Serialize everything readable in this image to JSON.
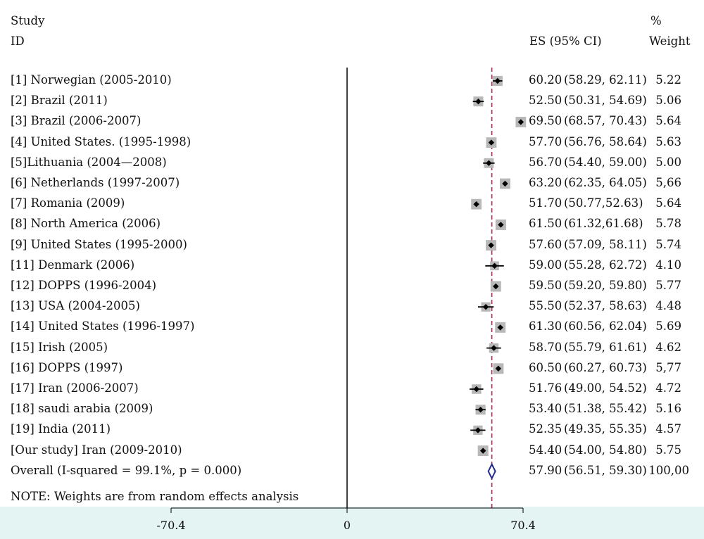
{
  "headers": {
    "study": "Study",
    "id": "ID",
    "es": "ES (95% CI)",
    "percent": "%",
    "weight": "Weight"
  },
  "note": "NOTE: Weights are from random effects analysis",
  "colors": {
    "effect_line": "#a0304a",
    "overall_diamond": "#1f2a8c",
    "axis_band": "#e3f4f2",
    "weight_box": "#b8b8b8"
  },
  "chart_data": {
    "type": "forest",
    "x_ticks": [
      "-70.4",
      "0",
      "70.4"
    ],
    "x_tick_values": [
      -70.4,
      0,
      70.4
    ],
    "xlim": [
      -70.4,
      70.4
    ],
    "overall_line": 57.9,
    "studies": [
      {
        "id": "[1] Norwegian (2005-2010)",
        "es": 60.2,
        "lo": 58.29,
        "hi": 62.11,
        "es_text": "60.20",
        "ci_text": "(58.29,   62.11)",
        "weight": 5.22,
        "weight_text": "5.22"
      },
      {
        "id": "[2] Brazil (2011)",
        "es": 52.5,
        "lo": 50.31,
        "hi": 54.69,
        "es_text": "52.50",
        "ci_text": "(50.31,   54.69)",
        "weight": 5.06,
        "weight_text": "5.06"
      },
      {
        "id": "[3] Brazil (2006-2007)",
        "es": 69.5,
        "lo": 68.57,
        "hi": 70.43,
        "es_text": "69.50",
        "ci_text": "(68.57,   70.43)",
        "weight": 5.64,
        "weight_text": "5.64"
      },
      {
        "id": "[4] United States. (1995-1998)",
        "es": 57.7,
        "lo": 56.76,
        "hi": 58.64,
        "es_text": "57.70",
        "ci_text": "(56.76,   58.64)",
        "weight": 5.63,
        "weight_text": "5.63"
      },
      {
        "id": "[5]Lithuania (2004—2008)",
        "es": 56.7,
        "lo": 54.4,
        "hi": 59.0,
        "es_text": "56.70",
        "ci_text": "(54.40,   59.00)",
        "weight": 5.0,
        "weight_text": "5.00"
      },
      {
        "id": "[6] Netherlands (1997-2007)",
        "es": 63.2,
        "lo": 62.35,
        "hi": 64.05,
        "es_text": "63.20",
        "ci_text": "(62.35,   64.05)",
        "weight": 5.66,
        "weight_text": "5,66"
      },
      {
        "id": "[7] Romania (2009)",
        "es": 51.7,
        "lo": 50.77,
        "hi": 52.63,
        "es_text": "51.70",
        "ci_text": "(50.77,52.63)",
        "weight": 5.64,
        "weight_text": "5.64"
      },
      {
        "id": "[8] North America (2006)",
        "es": 61.5,
        "lo": 61.32,
        "hi": 61.68,
        "es_text": "61.50",
        "ci_text": "(61.32,61.68)",
        "weight": 5.78,
        "weight_text": "5.78"
      },
      {
        "id": "[9] United States (1995-2000)",
        "es": 57.6,
        "lo": 57.09,
        "hi": 58.11,
        "es_text": "57.60",
        "ci_text": "(57.09,   58.11)",
        "weight": 5.74,
        "weight_text": "5.74"
      },
      {
        "id": "[11] Denmark (2006)",
        "es": 59.0,
        "lo": 55.28,
        "hi": 62.72,
        "es_text": "59.00",
        "ci_text": "(55.28,   62.72)",
        "weight": 4.1,
        "weight_text": "4.10"
      },
      {
        "id": "[12] DOPPS (1996-2004)",
        "es": 59.5,
        "lo": 59.2,
        "hi": 59.8,
        "es_text": "59.50",
        "ci_text": "(59.20,   59.80)",
        "weight": 5.77,
        "weight_text": "5.77"
      },
      {
        "id": "[13] USA (2004-2005)",
        "es": 55.5,
        "lo": 52.37,
        "hi": 58.63,
        "es_text": "55.50",
        "ci_text": "(52.37,   58.63)",
        "weight": 4.48,
        "weight_text": "4.48"
      },
      {
        "id": "[14] United States (1996-1997)",
        "es": 61.3,
        "lo": 60.56,
        "hi": 62.04,
        "es_text": "61.30",
        "ci_text": "(60.56,   62.04)",
        "weight": 5.69,
        "weight_text": "5.69"
      },
      {
        "id": "[15] Irish (2005)",
        "es": 58.7,
        "lo": 55.79,
        "hi": 61.61,
        "es_text": "58.70",
        "ci_text": "(55.79,   61.61)",
        "weight": 4.62,
        "weight_text": "4.62"
      },
      {
        "id": "[16] DOPPS (1997)",
        "es": 60.5,
        "lo": 60.27,
        "hi": 60.73,
        "es_text": "60.50",
        "ci_text": "(60.27,   60.73)",
        "weight": 5.77,
        "weight_text": "5,77"
      },
      {
        "id": "[17] Iran (2006-2007)",
        "es": 51.76,
        "lo": 49.0,
        "hi": 54.52,
        "es_text": "51.76",
        "ci_text": "(49.00,   54.52)",
        "weight": 4.72,
        "weight_text": "4.72"
      },
      {
        "id": "[18] saudi arabia (2009)",
        "es": 53.4,
        "lo": 51.38,
        "hi": 55.42,
        "es_text": "53.40",
        "ci_text": "(51.38,   55.42)",
        "weight": 5.16,
        "weight_text": "5.16"
      },
      {
        "id": "[19] India (2011)",
        "es": 52.35,
        "lo": 49.35,
        "hi": 55.35,
        "es_text": "52.35",
        "ci_text": "(49.35,   55.35)",
        "weight": 4.57,
        "weight_text": "4.57"
      },
      {
        "id": "[Our study] Iran (2009-2010)",
        "es": 54.4,
        "lo": 54.0,
        "hi": 54.8,
        "es_text": "54.40",
        "ci_text": "(54.00,   54.80)",
        "weight": 5.75,
        "weight_text": "5.75"
      }
    ],
    "overall": {
      "id": "Overall (I-squared = 99.1%, p = 0.000)",
      "es": 57.9,
      "lo": 56.51,
      "hi": 59.3,
      "es_text": "57.90",
      "ci_text": "(56.51,   59.30)",
      "weight_text": "100,00"
    }
  }
}
